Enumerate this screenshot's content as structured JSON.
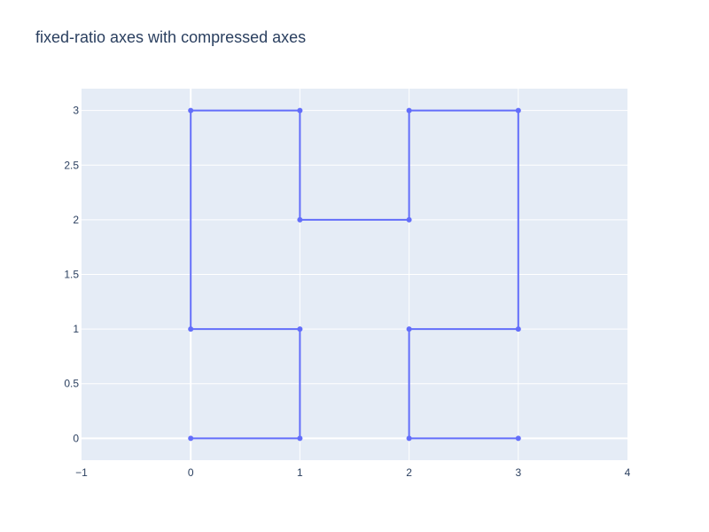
{
  "chart_data": {
    "type": "line",
    "title": "fixed-ratio axes with compressed axes",
    "xlabel": "",
    "ylabel": "",
    "xlim": [
      -1,
      4
    ],
    "ylim": [
      -0.2,
      3.2
    ],
    "x_ticks": [
      -1,
      0,
      1,
      2,
      3,
      4
    ],
    "x_tick_labels": [
      "−1",
      "0",
      "1",
      "2",
      "3",
      "4"
    ],
    "y_ticks": [
      0,
      0.5,
      1,
      1.5,
      2,
      2.5,
      3
    ],
    "y_tick_labels": [
      "0",
      "0.5",
      "1",
      "1.5",
      "2",
      "2.5",
      "3"
    ],
    "grid": true,
    "legend": "none",
    "series": [
      {
        "mode": "lines+markers",
        "x": [
          0,
          1,
          1,
          0,
          0,
          1,
          1,
          2,
          2,
          3,
          3,
          2,
          2,
          3
        ],
        "y": [
          0,
          0,
          1,
          1,
          3,
          3,
          2,
          2,
          3,
          3,
          1,
          1,
          0,
          0
        ]
      }
    ]
  },
  "colors": {
    "plot_bg": "#e5ecf6",
    "grid": "#ffffff",
    "series": "#636efa",
    "text": "#2a3f5f"
  }
}
